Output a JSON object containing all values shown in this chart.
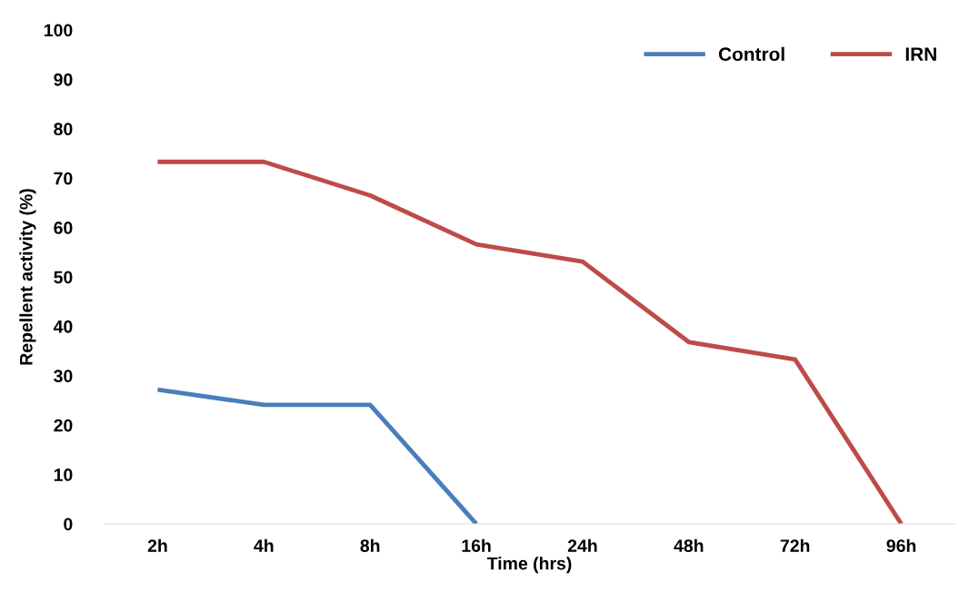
{
  "chart_data": {
    "type": "line",
    "xlabel": "Time (hrs)",
    "ylabel": "Repellent activity (%)",
    "categories": [
      "2h",
      "4h",
      "8h",
      "16h",
      "24h",
      "48h",
      "72h",
      "96h"
    ],
    "series": [
      {
        "name": "Control",
        "color": "#4a7ebb",
        "values": [
          27.2,
          24.1,
          24.1,
          0,
          null,
          null,
          null,
          null
        ]
      },
      {
        "name": "IRN",
        "color": "#be4b48",
        "values": [
          73.3,
          73.3,
          66.5,
          56.6,
          53.1,
          36.8,
          33.3,
          0
        ]
      }
    ],
    "ylim": [
      0,
      100
    ],
    "yticks": [
      0,
      10,
      20,
      30,
      40,
      50,
      60,
      70,
      80,
      90,
      100
    ],
    "grid": false,
    "legend": "top right",
    "marker": "none",
    "line_style": "solid"
  }
}
